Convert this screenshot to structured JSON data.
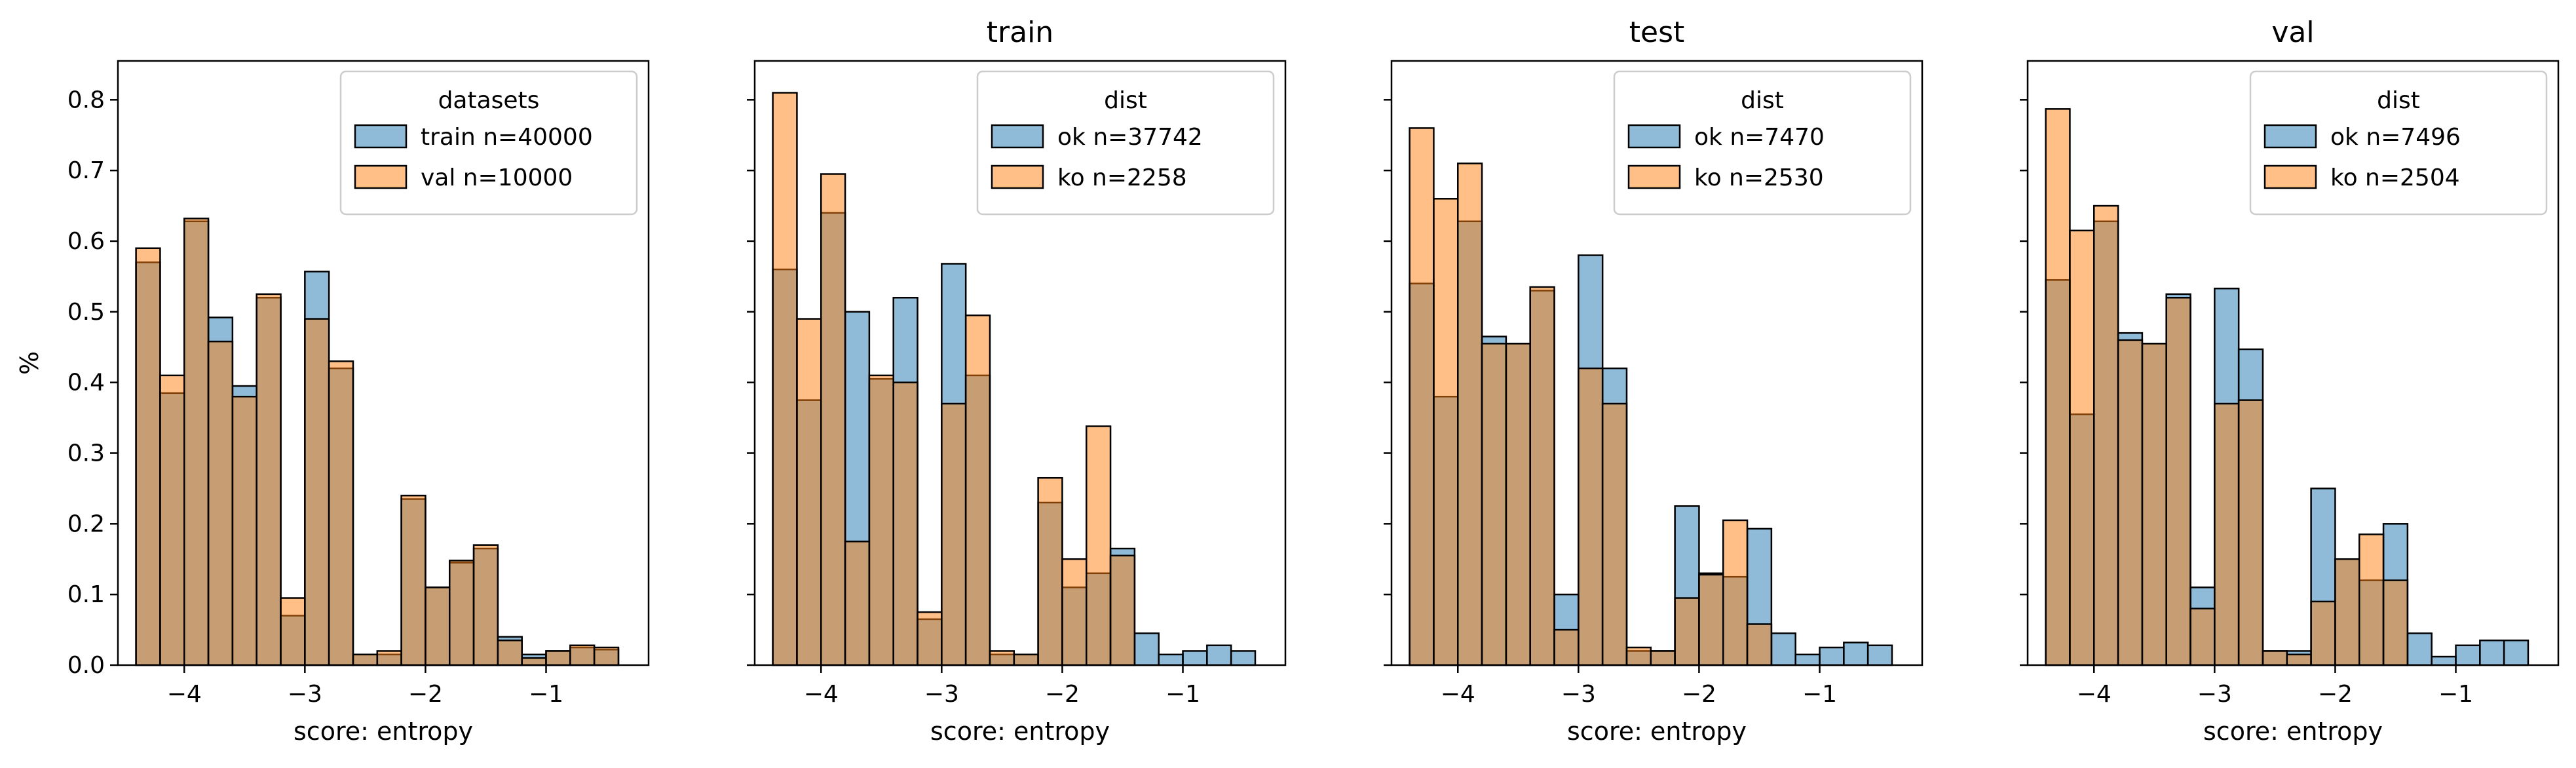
{
  "chart_data": {
    "type": "bar",
    "shared": {
      "xlabel": "score: entropy",
      "xlim": [
        -4.55,
        -0.15
      ],
      "ylim": [
        0,
        0.855
      ],
      "xticks": [
        -4,
        -3,
        -2,
        -1
      ],
      "xtick_labels": [
        "−4",
        "−3",
        "−2",
        "−1"
      ],
      "yticks": [
        0.0,
        0.1,
        0.2,
        0.3,
        0.4,
        0.5,
        0.6,
        0.7,
        0.8
      ],
      "ytick_labels": [
        "0.0",
        "0.1",
        "0.2",
        "0.3",
        "0.4",
        "0.5",
        "0.6",
        "0.7",
        "0.8"
      ],
      "bin_width": 0.2
    },
    "colors": {
      "blue": "#1f77b4",
      "orange": "#ff7f0e",
      "edge": "#000000"
    },
    "panels": [
      {
        "title": "",
        "ylabel": "%",
        "legend_title": "datasets",
        "legend_position": "top-right",
        "bin_starts": [
          -4.4,
          -4.2,
          -4.0,
          -3.8,
          -3.6,
          -3.4,
          -3.2,
          -3.0,
          -2.8,
          -2.6,
          -2.4,
          -2.2,
          -2.0,
          -1.8,
          -1.6,
          -1.4,
          -1.2,
          -1.0,
          -0.8,
          -0.6,
          -0.4
        ],
        "series": [
          {
            "name": "train n=40000",
            "color": "blue",
            "values": [
              0.57,
              0.385,
              0.628,
              0.492,
              0.395,
              0.52,
              0.07,
              0.557,
              0.42,
              0.015,
              0.015,
              0.235,
              0.11,
              0.145,
              0.165,
              0.04,
              0.015,
              0.02,
              0.025,
              0.022,
              0.0
            ]
          },
          {
            "name": "val n=10000",
            "color": "orange",
            "values": [
              0.59,
              0.41,
              0.632,
              0.458,
              0.38,
              0.525,
              0.095,
              0.49,
              0.43,
              0.015,
              0.02,
              0.24,
              0.11,
              0.148,
              0.17,
              0.035,
              0.01,
              0.02,
              0.028,
              0.025,
              0.0
            ]
          }
        ]
      },
      {
        "title": "train",
        "ylabel": "",
        "legend_title": "dist",
        "legend_position": "top-right",
        "bin_starts": [
          -4.4,
          -4.2,
          -4.0,
          -3.8,
          -3.6,
          -3.4,
          -3.2,
          -3.0,
          -2.8,
          -2.6,
          -2.4,
          -2.2,
          -2.0,
          -1.8,
          -1.6,
          -1.4,
          -1.2,
          -1.0,
          -0.8,
          -0.6,
          -0.4
        ],
        "series": [
          {
            "name": "ok n=37742",
            "color": "blue",
            "values": [
              0.56,
              0.375,
              0.64,
              0.5,
              0.405,
              0.52,
              0.065,
              0.568,
              0.41,
              0.015,
              0.015,
              0.23,
              0.11,
              0.13,
              0.165,
              0.045,
              0.015,
              0.02,
              0.028,
              0.02,
              0.0
            ]
          },
          {
            "name": "ko n=2258",
            "color": "orange",
            "values": [
              0.81,
              0.49,
              0.695,
              0.175,
              0.41,
              0.4,
              0.075,
              0.37,
              0.495,
              0.02,
              0.015,
              0.265,
              0.15,
              0.338,
              0.155,
              0.0,
              0.0,
              0.0,
              0.0,
              0.0,
              0.0
            ]
          }
        ]
      },
      {
        "title": "test",
        "ylabel": "",
        "legend_title": "dist",
        "legend_position": "top-right",
        "bin_starts": [
          -4.4,
          -4.2,
          -4.0,
          -3.8,
          -3.6,
          -3.4,
          -3.2,
          -3.0,
          -2.8,
          -2.6,
          -2.4,
          -2.2,
          -2.0,
          -1.8,
          -1.6,
          -1.4,
          -1.2,
          -1.0,
          -0.8,
          -0.6,
          -0.4
        ],
        "series": [
          {
            "name": "ok n=7470",
            "color": "blue",
            "values": [
              0.54,
              0.38,
              0.628,
              0.465,
              0.455,
              0.53,
              0.1,
              0.58,
              0.42,
              0.02,
              0.02,
              0.225,
              0.13,
              0.125,
              0.193,
              0.045,
              0.015,
              0.025,
              0.032,
              0.028,
              0.0
            ]
          },
          {
            "name": "ko n=2530",
            "color": "orange",
            "values": [
              0.76,
              0.66,
              0.71,
              0.455,
              0.455,
              0.535,
              0.05,
              0.42,
              0.37,
              0.025,
              0.02,
              0.095,
              0.128,
              0.205,
              0.058,
              0.0,
              0.0,
              0.0,
              0.0,
              0.0,
              0.0
            ]
          }
        ]
      },
      {
        "title": "val",
        "ylabel": "",
        "legend_title": "dist",
        "legend_position": "top-right",
        "bin_starts": [
          -4.4,
          -4.2,
          -4.0,
          -3.8,
          -3.6,
          -3.4,
          -3.2,
          -3.0,
          -2.8,
          -2.6,
          -2.4,
          -2.2,
          -2.0,
          -1.8,
          -1.6,
          -1.4,
          -1.2,
          -1.0,
          -0.8,
          -0.6,
          -0.4
        ],
        "series": [
          {
            "name": "ok n=7496",
            "color": "blue",
            "values": [
              0.545,
              0.355,
              0.628,
              0.47,
              0.455,
              0.525,
              0.11,
              0.533,
              0.447,
              0.02,
              0.02,
              0.25,
              0.15,
              0.12,
              0.2,
              0.045,
              0.012,
              0.028,
              0.035,
              0.035,
              0.0
            ]
          },
          {
            "name": "ko n=2504",
            "color": "orange",
            "values": [
              0.787,
              0.615,
              0.65,
              0.46,
              0.455,
              0.52,
              0.08,
              0.37,
              0.375,
              0.02,
              0.015,
              0.09,
              0.15,
              0.185,
              0.12,
              0.0,
              0.0,
              0.0,
              0.0,
              0.0,
              0.0
            ]
          }
        ]
      }
    ]
  }
}
